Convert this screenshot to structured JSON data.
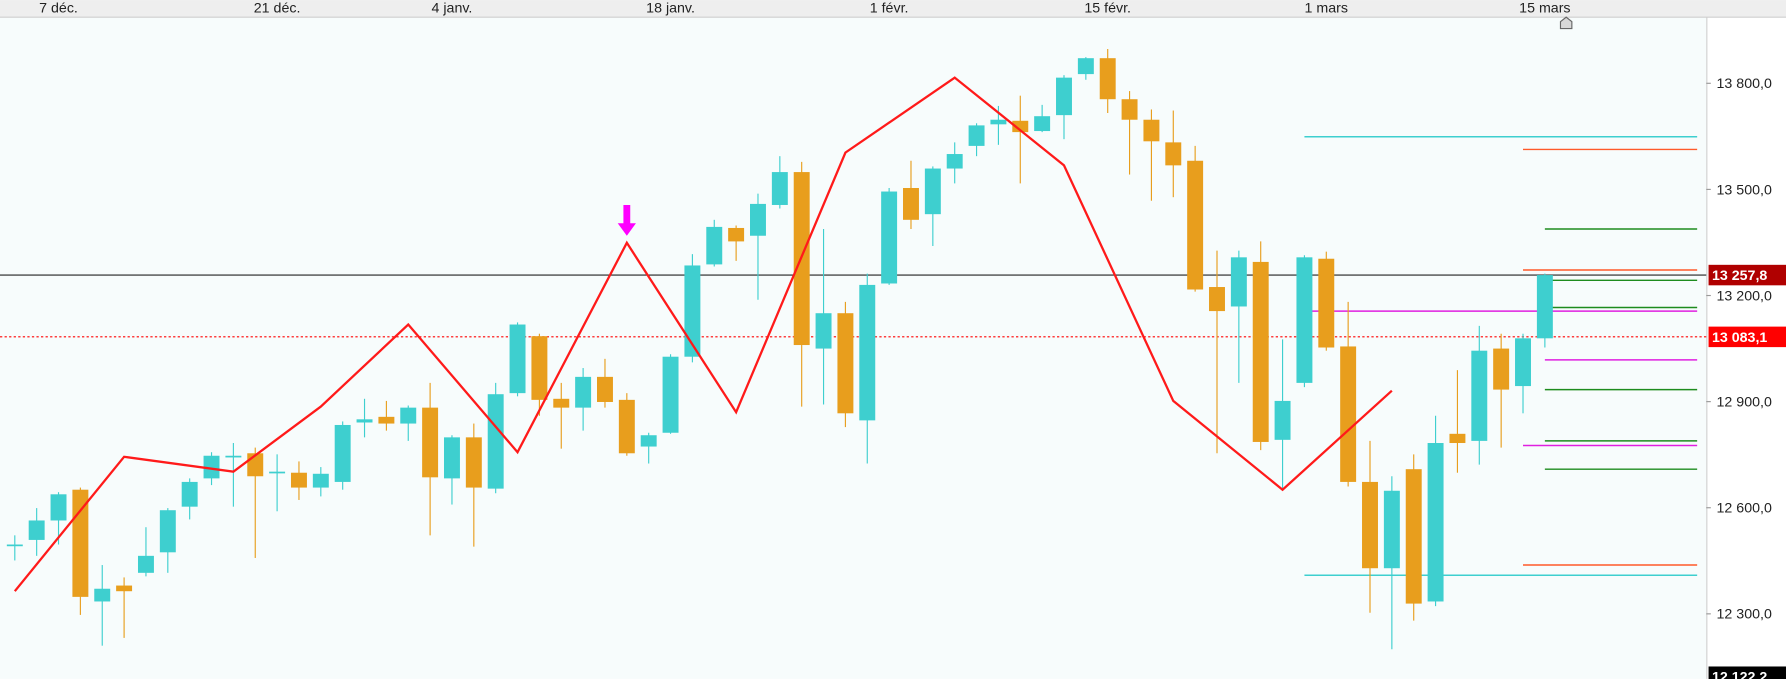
{
  "chart_data": {
    "type": "candlestick",
    "up_color": "#3ecfcf",
    "down_color": "#e89e1d",
    "categories": [
      null,
      null,
      "7 déc.",
      null,
      null,
      null,
      null,
      null,
      null,
      null,
      null,
      null,
      "21 déc.",
      null,
      null,
      null,
      null,
      null,
      null,
      null,
      "4 janv.",
      null,
      null,
      null,
      null,
      null,
      null,
      null,
      null,
      null,
      "18 janv.",
      null,
      null,
      null,
      null,
      null,
      null,
      null,
      null,
      null,
      "1 févr.",
      null,
      null,
      null,
      null,
      null,
      null,
      null,
      null,
      null,
      "15 févr.",
      null,
      null,
      null,
      null,
      null,
      null,
      null,
      null,
      null,
      "1 mars",
      null,
      null,
      null,
      null,
      null,
      null,
      null,
      null,
      null,
      "15 mars"
    ],
    "open": [
      12494,
      12509,
      12564,
      12651,
      12335,
      12380,
      12416,
      12474,
      12603,
      12683,
      12744,
      12754,
      12699,
      12699,
      12657,
      12673,
      12841,
      12857,
      12838,
      12883,
      12683,
      12799,
      12654,
      12924,
      13085,
      12908,
      12883,
      12970,
      12905,
      12773,
      12812,
      13027,
      13288,
      13391,
      13369,
      13456,
      13549,
      13050,
      13150,
      12847,
      13234,
      13504,
      13430,
      13559,
      13623,
      13684,
      13694,
      13665,
      13710,
      13826,
      13871,
      13755,
      13697,
      13633,
      13581,
      13224,
      13169,
      13295,
      12792,
      12953,
      13304,
      13056,
      12673,
      12429,
      12709,
      12335,
      12809,
      12789,
      13050,
      12944,
      13079
    ],
    "high": [
      12522,
      12599,
      12644,
      12657,
      12438,
      12403,
      12545,
      12599,
      12683,
      12757,
      12783,
      12770,
      12751,
      12731,
      12715,
      12844,
      12908,
      12902,
      12889,
      12953,
      12805,
      12838,
      12953,
      13124,
      13092,
      12953,
      12995,
      13021,
      12924,
      12812,
      13034,
      13317,
      13414,
      13398,
      13488,
      13594,
      13578,
      13388,
      13182,
      13262,
      13504,
      13581,
      13565,
      13633,
      13687,
      13736,
      13765,
      13739,
      13823,
      13874,
      13897,
      13778,
      13726,
      13723,
      13623,
      13327,
      13327,
      13353,
      13076,
      13314,
      13324,
      13182,
      12789,
      12689,
      12751,
      12860,
      12989,
      13114,
      13092,
      13092,
      13262
    ],
    "low": [
      12451,
      12464,
      12496,
      12297,
      12210,
      12232,
      12406,
      12416,
      12567,
      12664,
      12603,
      12458,
      12590,
      12622,
      12632,
      12651,
      12799,
      12818,
      12789,
      12522,
      12609,
      12490,
      12641,
      12915,
      12860,
      12767,
      12818,
      12883,
      12747,
      12725,
      12809,
      13011,
      13282,
      13298,
      13188,
      13446,
      12886,
      12892,
      12828,
      12725,
      13230,
      13388,
      13340,
      13517,
      13594,
      13626,
      13517,
      13662,
      13642,
      13810,
      13716,
      13542,
      13468,
      13478,
      13211,
      12754,
      12953,
      12763,
      12654,
      12941,
      13044,
      12660,
      12303,
      12200,
      12281,
      12322,
      12699,
      12722,
      12770,
      12867,
      13053
    ],
    "close": [
      12496,
      12564,
      12638,
      12348,
      12371,
      12364,
      12464,
      12593,
      12673,
      12747,
      12747,
      12689,
      12702,
      12657,
      12696,
      12834,
      12850,
      12838,
      12883,
      12686,
      12799,
      12657,
      12921,
      13118,
      12905,
      12883,
      12970,
      12899,
      12754,
      12805,
      13027,
      13285,
      13394,
      13353,
      13459,
      13549,
      13060,
      13150,
      12867,
      13230,
      13494,
      13414,
      13559,
      13600,
      13681,
      13697,
      13662,
      13707,
      13816,
      13871,
      13755,
      13697,
      13636,
      13568,
      13217,
      13156,
      13308,
      12786,
      12902,
      13308,
      13053,
      12673,
      12429,
      12648,
      12329,
      12783,
      12783,
      13044,
      12934,
      13079,
      13257.8
    ],
    "zigzag": {
      "color": "#ff1a1a",
      "x": [
        0,
        5,
        10,
        14,
        18,
        23,
        28,
        33,
        38,
        43,
        48,
        53,
        58,
        63
      ],
      "values": [
        12364,
        12744,
        12702,
        12886,
        13118,
        12757,
        13349,
        12870,
        13604,
        13816,
        13568,
        12902,
        12651,
        12931
      ]
    },
    "signals": [
      {
        "x": 28,
        "value": 13369,
        "color": "#ff00ff"
      }
    ],
    "levels": [
      {
        "value": 13649,
        "from": 59,
        "color": "#3ecfcf"
      },
      {
        "value": 12409,
        "from": 59,
        "color": "#3ecfcf"
      },
      {
        "value": 13156,
        "from": 59,
        "color": "#e020e0"
      },
      {
        "value": 13613,
        "from": 69,
        "color": "#ff5a2a"
      },
      {
        "value": 13272,
        "from": 69,
        "color": "#ff5a2a"
      },
      {
        "value": 12438,
        "from": 69,
        "color": "#ff5a2a"
      },
      {
        "value": 12776,
        "from": 69,
        "color": "#e020e0"
      },
      {
        "value": 13388,
        "from": 70,
        "color": "#1e8c1e"
      },
      {
        "value": 13243,
        "from": 70,
        "color": "#1e8c1e"
      },
      {
        "value": 13166,
        "from": 70,
        "color": "#1e8c1e"
      },
      {
        "value": 12934,
        "from": 70,
        "color": "#1e8c1e"
      },
      {
        "value": 12789,
        "from": 70,
        "color": "#1e8c1e"
      },
      {
        "value": 12709,
        "from": 70,
        "color": "#1e8c1e"
      },
      {
        "value": 13018,
        "from": 70,
        "color": "#e020e0"
      }
    ],
    "price_lines": [
      {
        "value": 13257.8,
        "label": "13 257,8",
        "color": "#b00000",
        "style": "solid"
      },
      {
        "value": 13083.1,
        "label": "13 083,1",
        "color": "#ff0000",
        "style": "dotted"
      },
      {
        "value": 12122.2,
        "label": "12 122,2",
        "color": "#000000",
        "style": "none"
      }
    ],
    "ylim": [
      12116,
      13987
    ],
    "yticks": [
      {
        "value": 12300,
        "label": "12 300,0"
      },
      {
        "value": 12600,
        "label": "12 600,0"
      },
      {
        "value": 12900,
        "label": "12 900,0"
      },
      {
        "value": 13200,
        "label": "13 200,0"
      },
      {
        "value": 13500,
        "label": "13 500,0"
      },
      {
        "value": 13800,
        "label": "13 800,0"
      }
    ]
  }
}
